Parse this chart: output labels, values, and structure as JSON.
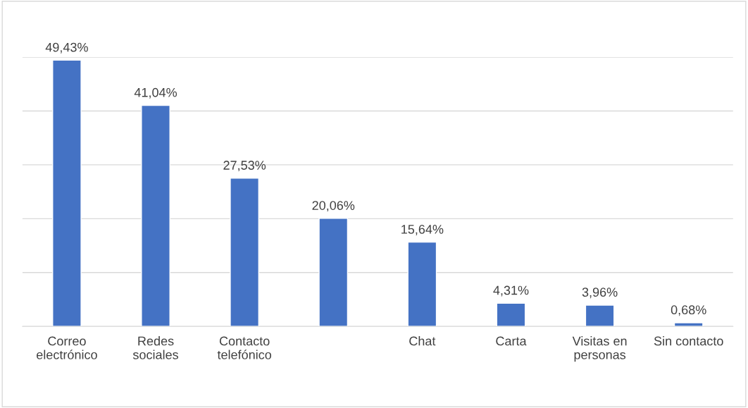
{
  "chart_data": {
    "type": "bar",
    "categories": [
      "Correo\nelectrónico",
      "Redes\nsociales",
      "Contacto\ntelefónico",
      null,
      "Chat",
      "Carta",
      "Visitas en\npersonas",
      "Sin contacto"
    ],
    "values": [
      49.43,
      41.04,
      27.53,
      20.06,
      15.64,
      4.31,
      3.96,
      0.68
    ],
    "value_labels": [
      "49,43%",
      "41,04%",
      "27,53%",
      "20,06%",
      "15,64%",
      "4,31%",
      "3,96%",
      "0,68%"
    ],
    "color": "#4472c4",
    "ylim": [
      0,
      50
    ],
    "yticks": [
      {
        "value": 0,
        "label": null
      },
      {
        "value": 10,
        "label": null
      },
      {
        "value": 20,
        "label": null
      },
      {
        "value": 30,
        "label": null
      },
      {
        "value": 40,
        "label": null
      },
      {
        "value": 50,
        "label": null
      }
    ],
    "tick_labels": "x",
    "grid": "y"
  }
}
